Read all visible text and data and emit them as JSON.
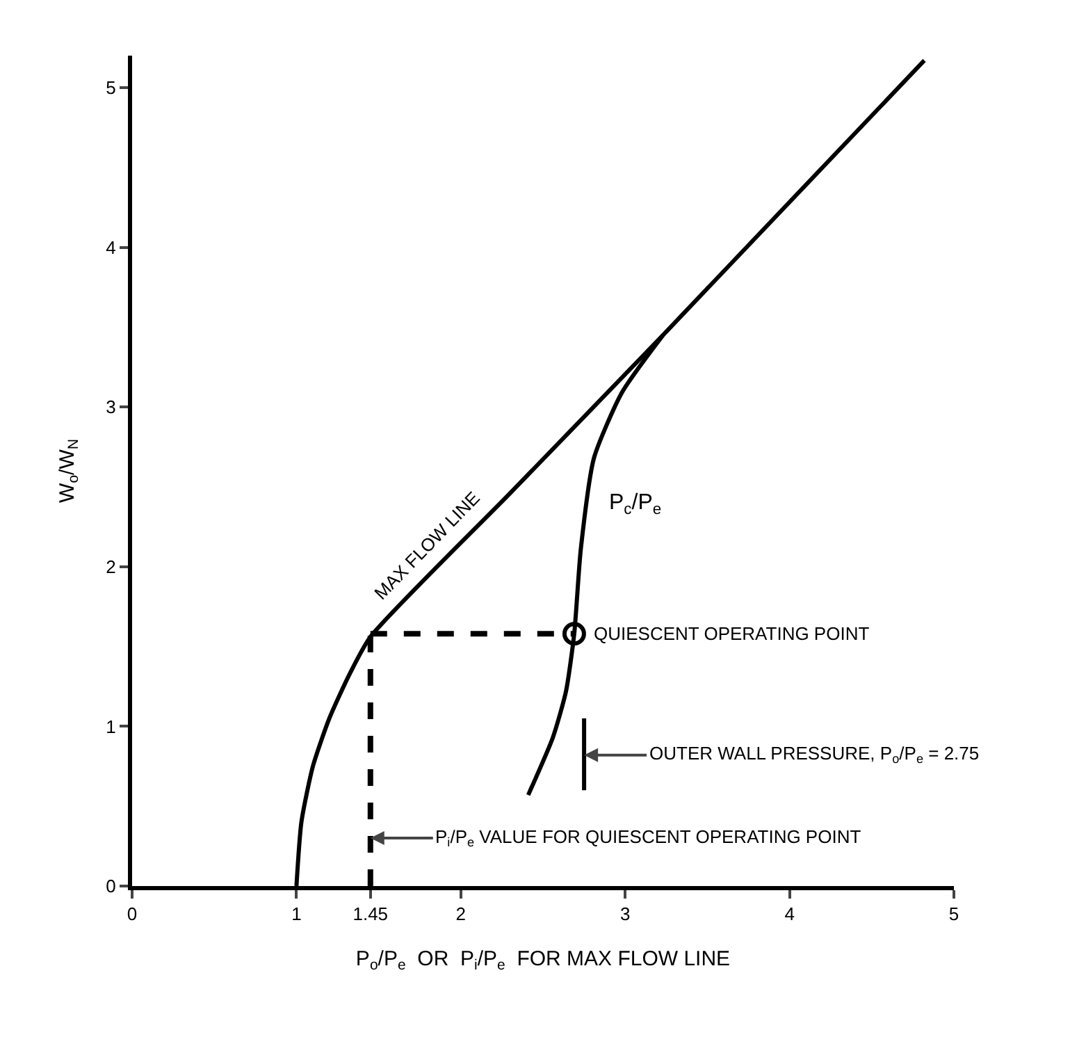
{
  "chart_data": {
    "type": "line",
    "xlabel": "P$_{o}$/P$_{e}$  OR  P$_{i}$/P$_{e}$  FOR MAX FLOW LINE",
    "ylabel": "W$_{o}$/W$_{N}$",
    "xlim": [
      0,
      5
    ],
    "xticks": [
      0,
      1,
      1.45,
      2,
      3,
      4,
      5
    ],
    "ylim": [
      0,
      5.2
    ],
    "yticks": [
      0,
      1,
      2,
      3,
      4,
      5
    ],
    "grid": false,
    "legend": false,
    "line_style": "solid",
    "marker": "none",
    "series": [
      {
        "name": "MAX FLOW LINE",
        "color": "#000000",
        "x": [
          1,
          1.03,
          1.1,
          1.2,
          1.32,
          1.45,
          2.3,
          3.23,
          4.82
        ],
        "values": [
          0,
          0.4,
          0.75,
          1.05,
          1.32,
          1.56,
          2.46,
          3.45,
          5.17
        ]
      },
      {
        "name": "P$_{c}$/P$_{e}$",
        "color": "#000000",
        "x": [
          2.41,
          2.56,
          2.64,
          2.69,
          2.73,
          2.81,
          2.98,
          3.23
        ],
        "values": [
          0.57,
          0.93,
          1.22,
          1.58,
          2.11,
          2.68,
          3.09,
          3.45
        ]
      },
      {
        "color": "#000000",
        "line_style": "dashed",
        "x": [
          1.45,
          2.69
        ],
        "values": [
          1.58,
          1.58
        ]
      },
      {
        "color": "#000000",
        "line_style": "dashed",
        "x": [
          1.45,
          1.45
        ],
        "values": [
          0,
          1.58
        ]
      },
      {
        "color": "#000000",
        "x": [
          2.75,
          2.75
        ],
        "values": [
          0.6,
          1.05
        ]
      },
      {
        "name": "QUIESCENT OPERATING POINT",
        "type": "scatter",
        "marker": "circle",
        "color": "#000000",
        "x": [
          2.69
        ],
        "values": [
          1.58
        ]
      }
    ],
    "annotations": [
      {
        "text": "OUTER WALL PRESSURE, P$_{o}$/P$_{e}$ = 2.75",
        "x": 2.75,
        "y": 0.82
      },
      {
        "text": "P$_{i}$/P$_{e}$ VALUE FOR QUIESCENT OPERATING POINT",
        "x": 1.45,
        "y": 0.3
      }
    ]
  }
}
